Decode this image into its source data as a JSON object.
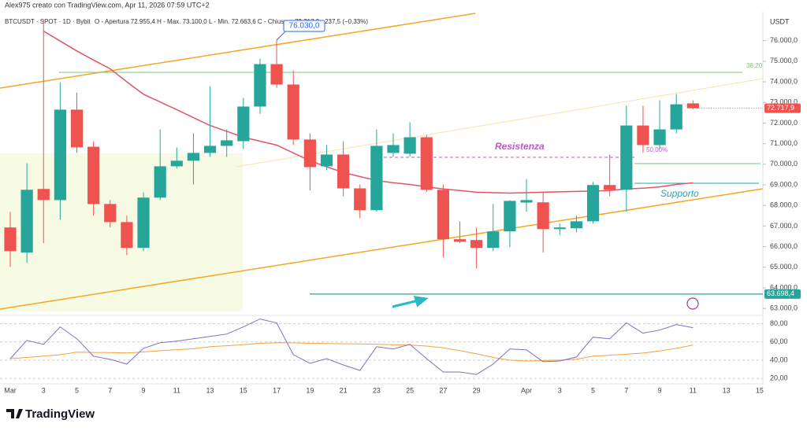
{
  "meta": {
    "author_line": "Alex975 creato con TradingView.com, Apr 11, 2026 07:59 UTC+2",
    "symbol": "BTCUSDT · SPOT · 1D · Bybit",
    "ohlc": "O - Apertura 72.955,4   H - Max. 73.100,0   L - Min. 72.663,6   C - Chiusura 72.717,9   −237,5 (−0,33%)",
    "currency": "USDT",
    "brand": "TradingView"
  },
  "chart_data": [
    {
      "type": "candlestick",
      "up_color": "#26a69a",
      "down_color": "#ef5350",
      "grid": false,
      "categories": [
        "Mar",
        null,
        "3",
        null,
        "5",
        null,
        "7",
        null,
        "9",
        null,
        "11",
        null,
        "13",
        null,
        "15",
        null,
        "17",
        null,
        "19",
        null,
        "21",
        null,
        "23",
        null,
        "25",
        null,
        "27",
        null,
        "29",
        null,
        null,
        "Apr",
        null,
        "3",
        null,
        "5",
        null,
        "7",
        null,
        "9",
        null,
        "11",
        null,
        "13",
        null,
        "15"
      ],
      "open": [
        66930,
        65710,
        68800,
        68260,
        72650,
        70850,
        68070,
        67190,
        65940,
        68380,
        69900,
        70170,
        70550,
        70890,
        71120,
        72800,
        74860,
        73870,
        71200,
        69900,
        70470,
        68830,
        67770,
        70550,
        70510,
        71310,
        68760,
        66360,
        66320,
        65940,
        66740,
        68140,
        68150,
        66850,
        66890,
        67230,
        68990,
        68760,
        71880,
        70930,
        71690,
        72955.4,
        null,
        null,
        null,
        null
      ],
      "high": [
        67690,
        70050,
        77000,
        73980,
        73480,
        71120,
        68260,
        67500,
        68640,
        71690,
        70820,
        71500,
        73790,
        71690,
        73220,
        75120,
        76030,
        74550,
        71500,
        70930,
        71120,
        69020,
        71690,
        71500,
        72040,
        71420,
        69020,
        67230,
        66930,
        68070,
        68260,
        69290,
        68640,
        67120,
        67500,
        69140,
        70470,
        72840,
        72840,
        73100,
        73410,
        73100,
        null,
        null,
        null,
        null
      ],
      "low": [
        65020,
        65210,
        66170,
        67310,
        70550,
        67500,
        66930,
        65590,
        65780,
        68260,
        69790,
        69020,
        70360,
        70360,
        70740,
        72450,
        73710,
        70930,
        68720,
        69710,
        68450,
        67380,
        67690,
        70360,
        70360,
        68650,
        65480,
        66170,
        64950,
        65780,
        65970,
        67690,
        65710,
        66550,
        66700,
        67120,
        68450,
        67690,
        70550,
        70740,
        71500,
        72663.6,
        null,
        null,
        null,
        null
      ],
      "close": [
        65780,
        68760,
        68260,
        72650,
        70820,
        68070,
        67190,
        65940,
        68380,
        69900,
        70170,
        70550,
        70890,
        71160,
        72800,
        74860,
        73870,
        71200,
        69860,
        70470,
        68830,
        67770,
        70890,
        70930,
        71310,
        68760,
        66360,
        66240,
        65940,
        66740,
        68220,
        68260,
        66850,
        66930,
        67230,
        68990,
        68760,
        71880,
        70930,
        71690,
        72910,
        72717.9,
        null,
        null,
        null,
        null
      ],
      "overlay": {
        "color": "#e25567",
        "values": [
          null,
          null,
          76460,
          75980,
          75500,
          75060,
          74630,
          74000,
          73400,
          73020,
          72650,
          72260,
          71880,
          71600,
          71310,
          71120,
          70930,
          70550,
          70170,
          69880,
          69600,
          69400,
          69210,
          69100,
          69020,
          68900,
          68800,
          68720,
          68640,
          68620,
          68600,
          68620,
          68640,
          68660,
          68680,
          68700,
          68720,
          68800,
          68840,
          68900,
          69020,
          69100,
          null,
          null,
          null,
          null
        ]
      },
      "ylim": [
        62700,
        77400
      ],
      "yticks": [
        {
          "value": 63000,
          "label": "63.000,0"
        },
        {
          "value": 64000,
          "label": "64.000,0"
        },
        {
          "value": 65000,
          "label": "65.000,0"
        },
        {
          "value": 66000,
          "label": "66.000,0"
        },
        {
          "value": 67000,
          "label": "67.000,0"
        },
        {
          "value": 68000,
          "label": "68.000,0"
        },
        {
          "value": 69000,
          "label": "69.000,0"
        },
        {
          "value": 70000,
          "label": "70.000,0"
        },
        {
          "value": 71000,
          "label": "71.000,0"
        },
        {
          "value": 72000,
          "label": "72.000,0"
        },
        {
          "value": 73000,
          "label": "73.000,0"
        },
        {
          "value": 74000,
          "label": "74.000,0"
        },
        {
          "value": 75000,
          "label": "75.000,0"
        },
        {
          "value": 76000,
          "label": "76.000,0"
        }
      ],
      "last_price": {
        "value": 72717.9,
        "label": "72.717,9"
      },
      "level": {
        "value": 63698.4,
        "label": "63.698,4"
      },
      "callout": {
        "value": 76030,
        "label": "76.030,0"
      },
      "annotations": [
        "Resistenza",
        "Supporto",
        "50,00%",
        "38,20"
      ]
    },
    {
      "type": "line",
      "rsi": {
        "color": "#7e6fc9",
        "values": [
          41.7,
          61.7,
          57.4,
          76.5,
          63.5,
          44.3,
          40.9,
          35.7,
          53,
          59.1,
          60.9,
          63.5,
          66.1,
          68.7,
          76.5,
          85.2,
          80.9,
          46.1,
          36.5,
          41.7,
          34.8,
          28.7,
          54.8,
          52.2,
          57.4,
          41.7,
          27,
          27,
          24.3,
          35.7,
          52.2,
          51.3,
          38.3,
          39.1,
          43.5,
          65.2,
          63.5,
          80.9,
          69.6,
          73,
          79.1,
          75.7,
          null,
          null,
          null,
          null
        ]
      },
      "rsi_ma": {
        "color": "#f5a13b",
        "values": [
          41.7,
          43,
          44.5,
          46,
          48.7,
          48.5,
          48.3,
          48,
          49,
          50.4,
          51.5,
          52.5,
          54.8,
          55.8,
          57,
          58.5,
          59.1,
          59,
          58.5,
          58.3,
          58,
          57.8,
          57.5,
          57,
          56.5,
          55.5,
          53.5,
          50.4,
          47,
          43,
          40,
          39.1,
          39.5,
          40,
          41,
          44.3,
          45.5,
          46.5,
          47.8,
          50,
          53,
          56.5,
          null,
          null,
          null,
          null
        ]
      },
      "ylim": [
        8,
        90
      ],
      "yticks": [
        {
          "value": 20,
          "label": "20,00"
        },
        {
          "value": 40,
          "label": "40,00"
        },
        {
          "value": 60,
          "label": "60,00"
        },
        {
          "value": 80,
          "label": "80,00"
        }
      ]
    }
  ]
}
